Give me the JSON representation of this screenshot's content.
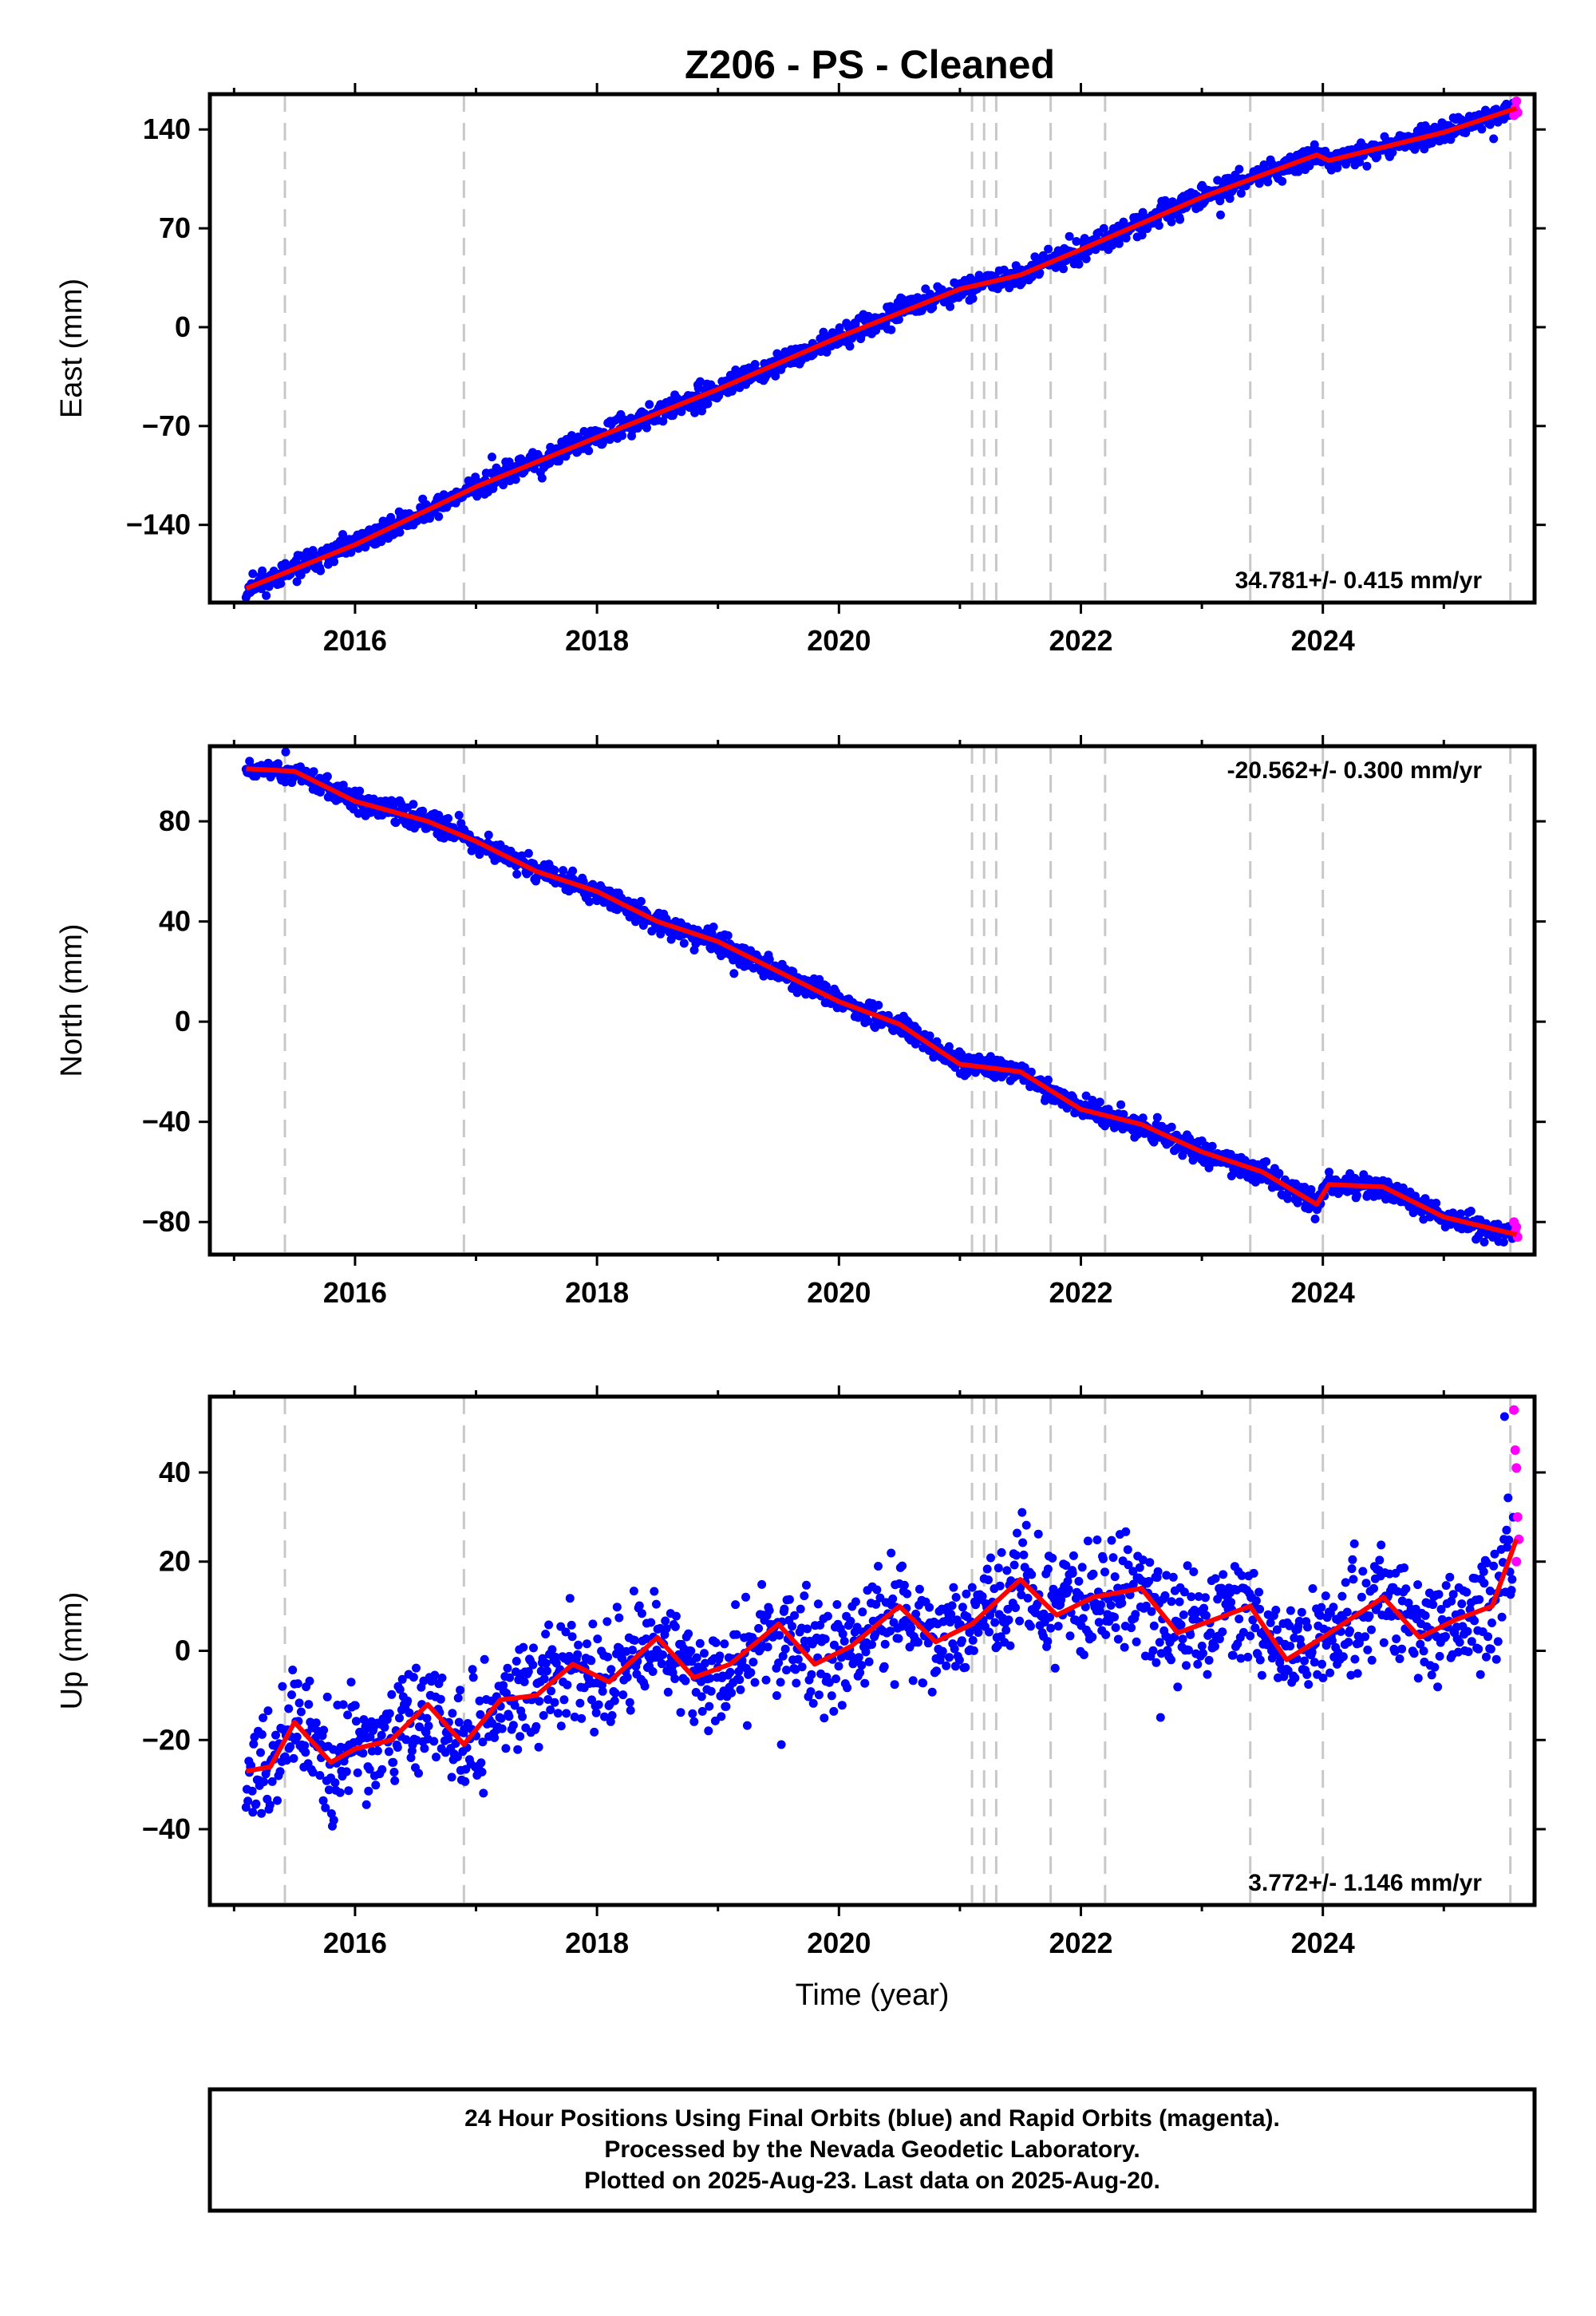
{
  "title": "Z206  - PS - Cleaned",
  "colors": {
    "final": "#0000ff",
    "rapid": "#ff00ff",
    "fit": "#ff0000",
    "event": "#c8c8c8"
  },
  "footer": {
    "line1": "24 Hour Positions Using Final Orbits (blue) and Rapid Orbits (magenta).",
    "line2": "Processed by the Nevada Geodetic Laboratory.",
    "line3": "Plotted on 2025-Aug-23. Last data on 2025-Aug-20."
  },
  "chart_data": [
    {
      "type": "scatter",
      "ylabel": "East (mm)",
      "xlabel": "",
      "rate_label": "34.781+/- 0.415 mm/yr",
      "xlim": [
        2014.8,
        2025.75
      ],
      "ylim": [
        -195,
        165
      ],
      "xticks": [
        2016,
        2018,
        2020,
        2022,
        2024
      ],
      "xtick_labels": [
        "2016",
        "2018",
        "2020",
        "2022",
        "2024"
      ],
      "yticks": [
        -140,
        -70,
        0,
        70,
        140
      ],
      "ytick_labels": [
        "−140",
        "−70",
        "0",
        "70",
        "140"
      ],
      "events": [
        2015.42,
        2016.9,
        2021.1,
        2021.2,
        2021.3,
        2021.75,
        2022.2,
        2023.4,
        2024.0,
        2025.55
      ],
      "trend": {
        "x": [
          2015.1,
          2016.0,
          2017.0,
          2018.0,
          2019.0,
          2020.0,
          2021.0,
          2021.5,
          2022.0,
          2023.0,
          2023.95,
          2024.05,
          2025.0,
          2025.6
        ],
        "y": [
          -185,
          -154,
          -113,
          -78,
          -44,
          -7,
          27,
          37,
          55,
          92,
          122,
          118,
          138,
          155
        ]
      },
      "scatter": {
        "noise": 4,
        "seed": 11
      },
      "rapid": {
        "x": [
          2025.58,
          2025.59,
          2025.6,
          2025.61
        ],
        "y": [
          150,
          155,
          160,
          152
        ]
      }
    },
    {
      "type": "scatter",
      "ylabel": "North (mm)",
      "xlabel": "",
      "rate_label": "-20.562+/- 0.300 mm/yr",
      "xlim": [
        2014.8,
        2025.75
      ],
      "ylim": [
        -93,
        110
      ],
      "xticks": [
        2016,
        2018,
        2020,
        2022,
        2024
      ],
      "xtick_labels": [
        "2016",
        "2018",
        "2020",
        "2022",
        "2024"
      ],
      "yticks": [
        -80,
        -40,
        0,
        40,
        80
      ],
      "ytick_labels": [
        "−80",
        "−40",
        "0",
        "40",
        "80"
      ],
      "events": [
        2015.42,
        2016.9,
        2021.1,
        2021.2,
        2021.3,
        2021.75,
        2022.2,
        2023.4,
        2024.0,
        2025.55
      ],
      "trend": {
        "x": [
          2015.1,
          2015.5,
          2016.0,
          2016.6,
          2017.0,
          2017.5,
          2018.0,
          2018.5,
          2019.0,
          2019.5,
          2020.0,
          2020.5,
          2021.0,
          2021.5,
          2022.0,
          2022.5,
          2023.0,
          2023.5,
          2023.95,
          2024.05,
          2024.5,
          2025.0,
          2025.6
        ],
        "y": [
          101,
          100,
          88,
          80,
          72,
          60,
          52,
          40,
          32,
          20,
          8,
          -1,
          -17,
          -20,
          -35,
          -41,
          -52,
          -60,
          -73,
          -65,
          -66,
          -78,
          -85
        ]
      },
      "scatter": {
        "noise": 2.2,
        "seed": 23
      },
      "rapid": {
        "x": [
          2025.58,
          2025.59,
          2025.6,
          2025.61
        ],
        "y": [
          -80,
          -84,
          -82,
          -86
        ]
      }
    },
    {
      "type": "scatter",
      "ylabel": "Up (mm)",
      "xlabel": "Time (year)",
      "rate_label": "3.772+/- 1.146 mm/yr",
      "xlim": [
        2014.8,
        2025.75
      ],
      "ylim": [
        -57,
        57
      ],
      "xticks": [
        2016,
        2018,
        2020,
        2022,
        2024
      ],
      "xtick_labels": [
        "2016",
        "2018",
        "2020",
        "2022",
        "2024"
      ],
      "yticks": [
        -40,
        -20,
        0,
        20,
        40
      ],
      "ytick_labels": [
        "−40",
        "−20",
        "0",
        "20",
        "40"
      ],
      "events": [
        2015.42,
        2016.9,
        2021.1,
        2021.2,
        2021.3,
        2021.75,
        2022.2,
        2023.4,
        2024.0,
        2025.55
      ],
      "trend": {
        "x": [
          2015.1,
          2015.3,
          2015.5,
          2015.8,
          2016.0,
          2016.3,
          2016.6,
          2016.9,
          2017.2,
          2017.5,
          2017.8,
          2018.1,
          2018.5,
          2018.8,
          2019.1,
          2019.5,
          2019.8,
          2020.1,
          2020.5,
          2020.8,
          2021.1,
          2021.5,
          2021.8,
          2022.1,
          2022.5,
          2022.8,
          2023.1,
          2023.4,
          2023.7,
          2024.0,
          2024.5,
          2024.8,
          2025.1,
          2025.4,
          2025.6
        ],
        "y": [
          -27,
          -26,
          -16,
          -25,
          -22,
          -20,
          -12,
          -21,
          -11,
          -10,
          -3,
          -7,
          3,
          -6,
          -3,
          6,
          -3,
          1,
          10,
          2,
          6,
          16,
          8,
          12,
          14,
          4,
          7,
          10,
          -2,
          3,
          12,
          3,
          7,
          10,
          25
        ]
      },
      "scatter": {
        "noise": 6,
        "seed": 37
      },
      "rapid": {
        "x": [
          2025.58,
          2025.59,
          2025.6,
          2025.61,
          2025.62,
          2025.6
        ],
        "y": [
          54,
          45,
          41,
          30,
          25,
          20
        ]
      }
    }
  ]
}
